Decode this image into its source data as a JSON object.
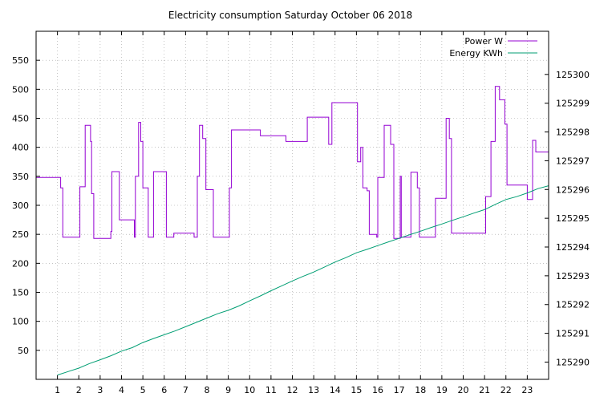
{
  "chart_data": {
    "type": "line",
    "title": "Electricity consumption Saturday October 06 2018",
    "xlim": [
      0,
      24
    ],
    "ylim": [
      0,
      600
    ],
    "y2lim": [
      125289.4,
      125301.5
    ],
    "x_ticks": [
      1,
      2,
      3,
      4,
      5,
      6,
      7,
      8,
      9,
      10,
      11,
      12,
      13,
      14,
      15,
      16,
      17,
      18,
      19,
      20,
      21,
      22,
      23
    ],
    "y_ticks": [
      50,
      100,
      150,
      200,
      250,
      300,
      350,
      400,
      450,
      500,
      550
    ],
    "y2_ticks": [
      125290,
      125291,
      125292,
      125293,
      125294,
      125295,
      125296,
      125297,
      125298,
      125299,
      125300
    ],
    "grid": true,
    "legend_position": "top-right",
    "colors": {
      "power": "#9400d3",
      "energy": "#009e73"
    },
    "series": [
      {
        "name": "Power W",
        "axis": "left",
        "step": true,
        "x": [
          0,
          1.0,
          1.15,
          1.25,
          2.0,
          2.05,
          2.3,
          2.55,
          2.6,
          2.7,
          2.8,
          3.5,
          3.55,
          3.6,
          3.9,
          4.0,
          4.6,
          4.65,
          4.8,
          4.9,
          5.0,
          5.25,
          5.35,
          5.5,
          6.0,
          6.1,
          6.45,
          6.55,
          7.4,
          7.55,
          7.65,
          7.8,
          7.95,
          8.3,
          8.8,
          9.05,
          9.15,
          10.5,
          11.7,
          12.7,
          13.7,
          13.75,
          13.85,
          15.0,
          15.05,
          15.2,
          15.3,
          15.5,
          15.6,
          15.95,
          16.0,
          16.1,
          16.3,
          16.6,
          16.75,
          16.8,
          17.05,
          17.1,
          17.2,
          17.55,
          17.85,
          17.95,
          18.2,
          18.7,
          19.0,
          19.2,
          19.35,
          19.45,
          20.3,
          21.05,
          21.2,
          21.3,
          21.5,
          21.7,
          21.95,
          22.05,
          22.85,
          23.0,
          23.25,
          23.4,
          24.0
        ],
        "values": [
          348,
          348,
          330,
          245,
          245,
          332,
          438,
          410,
          320,
          243,
          243,
          255,
          358,
          358,
          275,
          275,
          245,
          350,
          443,
          410,
          330,
          245,
          245,
          358,
          358,
          245,
          252,
          252,
          245,
          350,
          438,
          415,
          327,
          245,
          245,
          330,
          430,
          420,
          410,
          452,
          405,
          405,
          477,
          477,
          375,
          400,
          330,
          325,
          250,
          245,
          348,
          348,
          438,
          405,
          243,
          243,
          350,
          245,
          245,
          357,
          330,
          245,
          245,
          312,
          312,
          450,
          415,
          252,
          252,
          315,
          315,
          410,
          505,
          482,
          440,
          335,
          335,
          310,
          412,
          392,
          310
        ]
      },
      {
        "name": "Energy KWh",
        "axis": "right",
        "x": [
          1.0,
          1.5,
          2.0,
          2.5,
          3.0,
          3.5,
          4.0,
          4.5,
          5.0,
          5.5,
          6.0,
          6.5,
          7.0,
          7.5,
          8.0,
          8.5,
          9.0,
          9.5,
          10.0,
          10.5,
          11.0,
          11.5,
          12.0,
          12.5,
          13.0,
          13.5,
          14.0,
          14.5,
          15.0,
          15.5,
          16.0,
          16.5,
          17.0,
          17.5,
          18.0,
          18.5,
          19.0,
          19.5,
          20.0,
          20.5,
          21.0,
          21.5,
          22.0,
          22.5,
          23.0,
          23.5,
          24.0
        ],
        "values": [
          125289.55,
          125289.67,
          125289.79,
          125289.95,
          125290.08,
          125290.22,
          125290.38,
          125290.5,
          125290.68,
          125290.82,
          125290.95,
          125291.08,
          125291.23,
          125291.38,
          125291.53,
          125291.68,
          125291.8,
          125291.95,
          125292.13,
          125292.3,
          125292.48,
          125292.65,
          125292.82,
          125292.98,
          125293.13,
          125293.3,
          125293.48,
          125293.63,
          125293.8,
          125293.92,
          125294.05,
          125294.18,
          125294.3,
          125294.43,
          125294.55,
          125294.68,
          125294.8,
          125294.93,
          125295.05,
          125295.18,
          125295.3,
          125295.48,
          125295.65,
          125295.75,
          125295.88,
          125296.03,
          125296.13
        ]
      }
    ]
  }
}
